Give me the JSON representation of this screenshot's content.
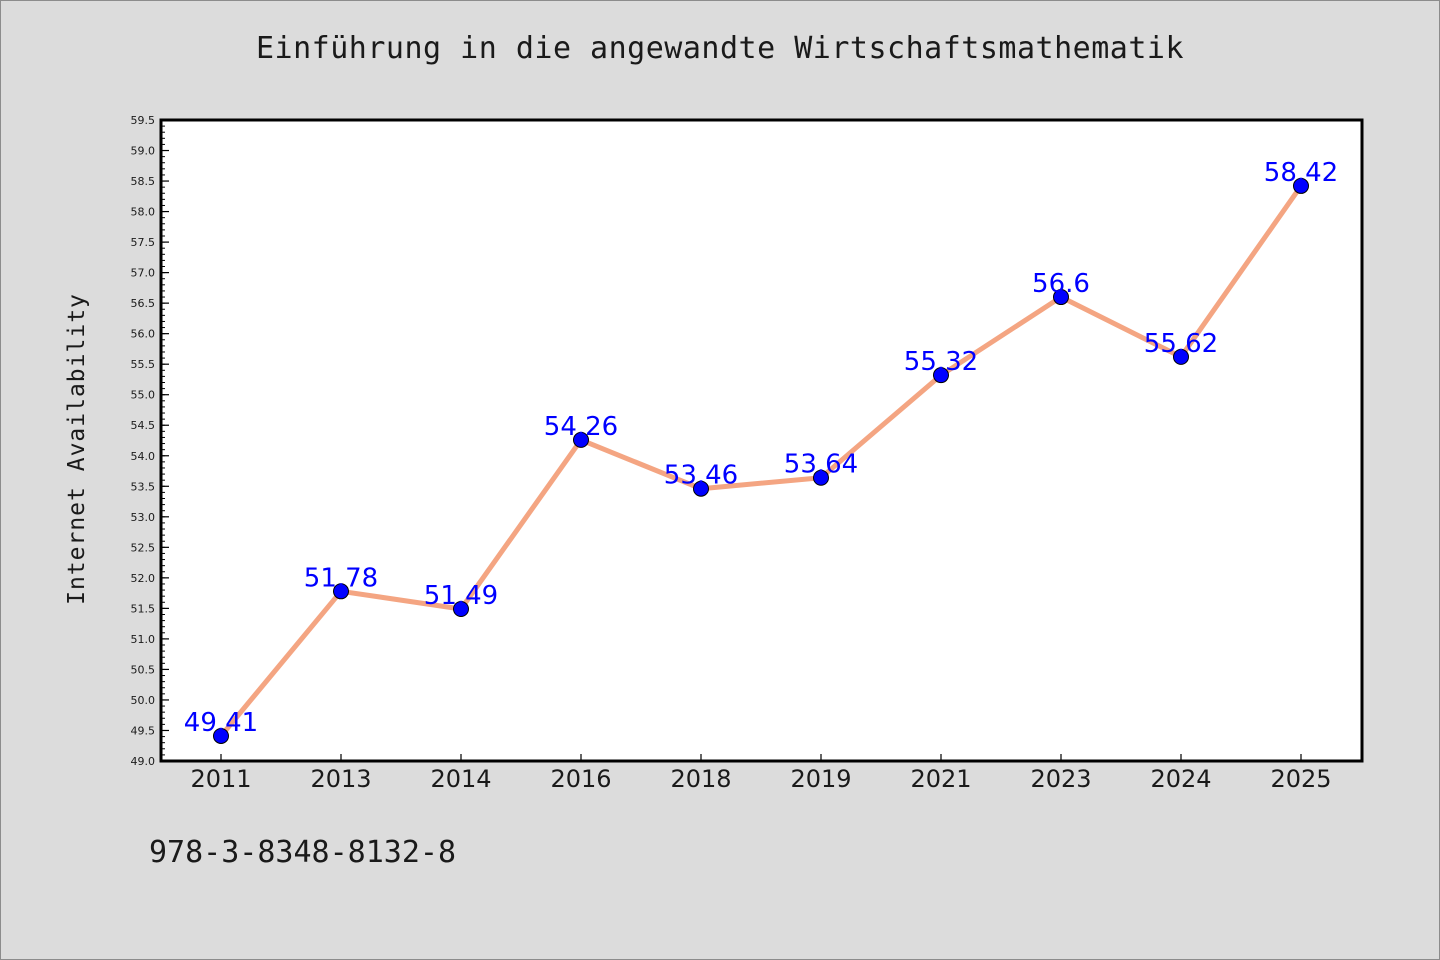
{
  "chart_data": {
    "type": "line",
    "title": "Einführung in die angewandte Wirtschaftsmathematik",
    "xlabel": "",
    "ylabel": "Internet Availability",
    "categories": [
      "2011",
      "2013",
      "2014",
      "2016",
      "2018",
      "2019",
      "2021",
      "2023",
      "2024",
      "2025"
    ],
    "series": [
      {
        "values": [
          49.41,
          51.78,
          51.49,
          54.26,
          53.46,
          53.64,
          55.32,
          56.6,
          55.62,
          58.42
        ]
      }
    ],
    "data_labels": [
      "49.41",
      "51.78",
      "51.49",
      "54.26",
      "53.46",
      "53.64",
      "55.32",
      "56.6",
      "55.62",
      "58.42"
    ],
    "ylim": [
      49.0,
      59.5
    ],
    "y_ticks": [
      "49.0",
      "49.5",
      "50.0",
      "50.5",
      "51.0",
      "51.5",
      "52.0",
      "52.5",
      "53.0",
      "53.5",
      "54.0",
      "54.5",
      "55.0",
      "55.5",
      "56.0",
      "56.5",
      "57.0",
      "57.5",
      "58.0",
      "58.5",
      "59.0",
      "59.5"
    ],
    "grid": false,
    "legend": "none",
    "colors": {
      "line": "#f4a582",
      "marker": "#0000ff",
      "label": "#0000ff",
      "background": "#dcdcdc",
      "plot_background": "#ffffff"
    }
  },
  "footer": {
    "isbn": "978-3-8348-8132-8"
  }
}
